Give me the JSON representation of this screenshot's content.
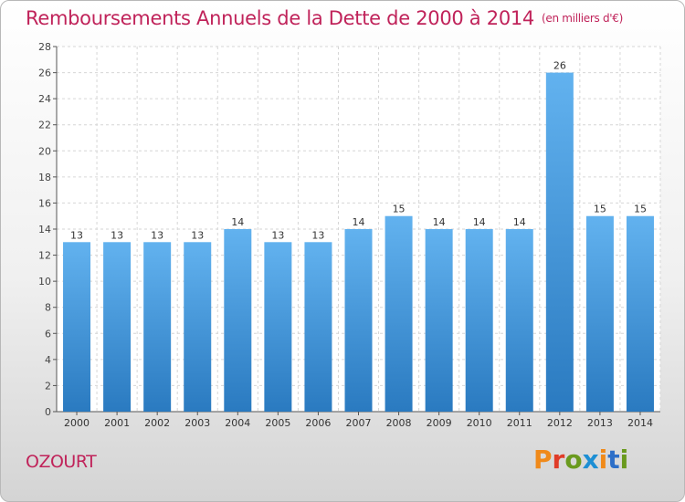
{
  "header": {
    "title": "Remboursements Annuels de la Dette de 2000 à 2014",
    "unit": "(en milliers d'€)"
  },
  "footer": {
    "town": "OZOURT",
    "logo_text": "Proxiti"
  },
  "colors": {
    "title": "#c0235a",
    "bar_top": "#62b2ef",
    "bar_bottom": "#2a7ac0",
    "logo_letters": [
      "#f08a1a",
      "#e03c28",
      "#6a9a1e",
      "#1d8fd4",
      "#f08a1a",
      "#2d6fc8",
      "#6a9a1e"
    ]
  },
  "chart_data": {
    "type": "bar",
    "title": "Remboursements Annuels de la Dette de 2000 à 2014",
    "xlabel": "",
    "ylabel": "",
    "ylim": [
      0,
      28
    ],
    "ytick_step": 2,
    "grid": true,
    "categories": [
      "2000",
      "2001",
      "2002",
      "2003",
      "2004",
      "2005",
      "2006",
      "2007",
      "2008",
      "2009",
      "2010",
      "2011",
      "2012",
      "2013",
      "2014"
    ],
    "values": [
      13,
      13,
      13,
      13,
      14,
      13,
      13,
      14,
      15,
      14,
      14,
      14,
      26,
      15,
      15
    ]
  }
}
